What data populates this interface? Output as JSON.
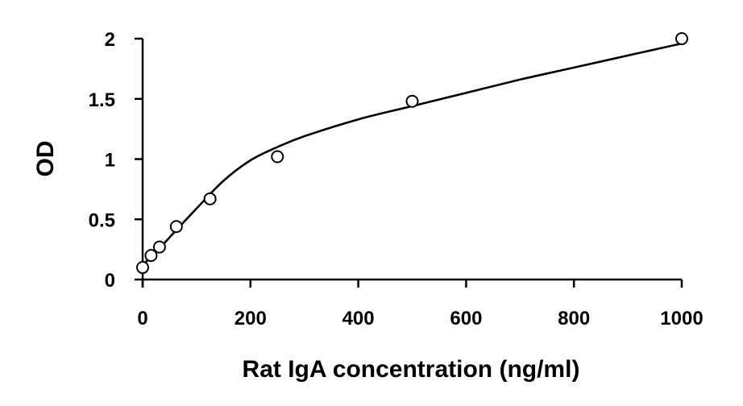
{
  "chart_data": {
    "type": "scatter",
    "title": "",
    "xlabel": "Rat IgA concentration (ng/ml)",
    "ylabel": "OD",
    "xlim": [
      0,
      1000
    ],
    "ylim": [
      0,
      2
    ],
    "x_ticks": [
      "0",
      "200",
      "400",
      "600",
      "800",
      "1000"
    ],
    "y_ticks": [
      "0",
      "0.5",
      "1",
      "1.5",
      "2"
    ],
    "grid": false,
    "legend": "none",
    "series": [
      {
        "marker": "open-circle",
        "x": [
          0,
          15.6,
          31.25,
          62.5,
          125,
          250,
          500,
          1000
        ],
        "y": [
          0.1,
          0.2,
          0.27,
          0.44,
          0.67,
          1.02,
          1.48,
          2.0
        ]
      }
    ],
    "fit_curve": {
      "x": [
        0,
        25,
        50,
        100,
        150,
        200,
        250,
        300,
        400,
        500,
        600,
        700,
        800,
        900,
        1000
      ],
      "y": [
        0.12,
        0.23,
        0.35,
        0.59,
        0.82,
        0.99,
        1.1,
        1.19,
        1.33,
        1.44,
        1.55,
        1.66,
        1.76,
        1.86,
        1.96
      ]
    },
    "colors": {
      "axis": "#000000",
      "marker_fill": "#ffffff",
      "line": "#000000"
    }
  }
}
